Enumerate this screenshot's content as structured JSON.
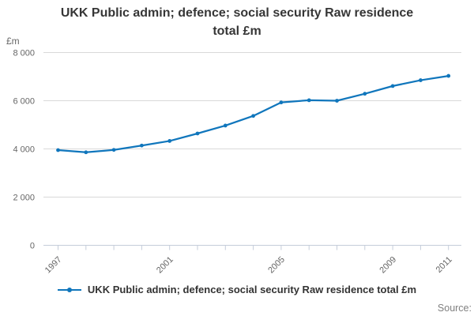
{
  "title_lines": [
    "UKK Public admin; defence; social security Raw residence",
    "total £m"
  ],
  "y_axis": {
    "unit_label": "£m",
    "ticks": [
      {
        "value": 8000,
        "label": "8 000"
      },
      {
        "value": 6000,
        "label": "6 000"
      },
      {
        "value": 4000,
        "label": "4 000"
      },
      {
        "value": 2000,
        "label": "2 000"
      },
      {
        "value": 0,
        "label": "0"
      }
    ]
  },
  "x_axis": {
    "labeled_years": [
      "1997",
      "2001",
      "2005",
      "2009",
      "2011"
    ]
  },
  "legend": {
    "label": "UKK Public admin; defence; social security Raw residence total £m"
  },
  "source_label": "Source:",
  "colors": {
    "line": "#1076bc",
    "grid": "#d9d9d9",
    "axis": "#c5cdda",
    "tick_text": "#666666",
    "title_text": "#363636",
    "legend_text": "#333333",
    "source_text": "#7f7f7f"
  },
  "chart_data": {
    "type": "line",
    "title": "UKK Public admin; defence; social security Raw residence total £m",
    "x": [
      1997,
      1998,
      1999,
      2000,
      2001,
      2002,
      2003,
      2004,
      2005,
      2006,
      2007,
      2008,
      2009,
      2010,
      2011
    ],
    "series": [
      {
        "name": "UKK Public admin; defence; social security Raw residence total £m",
        "values": [
          3950,
          3860,
          3960,
          4140,
          4330,
          4640,
          4970,
          5370,
          5930,
          6020,
          6000,
          6290,
          6610,
          6850,
          7030
        ]
      }
    ],
    "ylabel": "£m",
    "ylim": [
      0,
      8000
    ],
    "y_tick_step": 2000,
    "grid": "horizontal-only",
    "legend_position": "bottom",
    "marker": "dot"
  }
}
